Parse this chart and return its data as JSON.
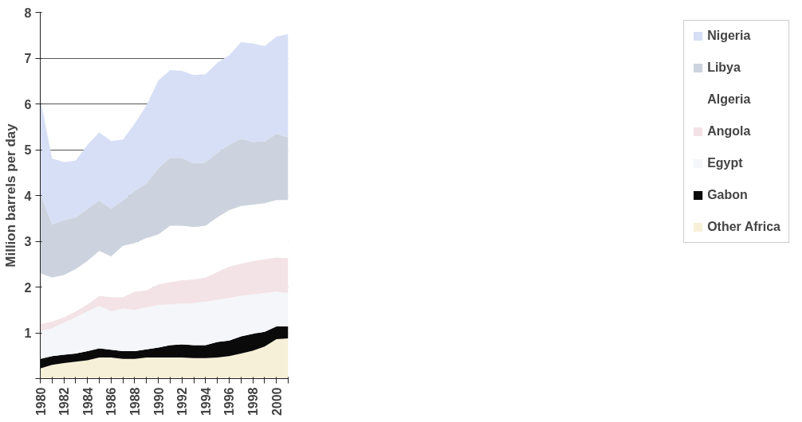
{
  "chart_data": {
    "type": "area",
    "stacked": true,
    "ylabel": "Million barrels per day",
    "x": [
      1980,
      1981,
      1982,
      1983,
      1984,
      1985,
      1986,
      1987,
      1988,
      1989,
      1990,
      1991,
      1992,
      1993,
      1994,
      1995,
      1996,
      1997,
      1998,
      1999,
      2000,
      2001
    ],
    "xlim": [
      1980,
      2001
    ],
    "xticks": [
      1980,
      {
        "value": 1981,
        "label": null
      },
      1982,
      {
        "value": 1983,
        "label": null
      },
      1984,
      {
        "value": 1985,
        "label": null
      },
      1986,
      {
        "value": 1987,
        "label": null
      },
      1988,
      {
        "value": 1989,
        "label": null
      },
      1990,
      {
        "value": 1991,
        "label": null
      },
      1992,
      {
        "value": 1993,
        "label": null
      },
      1994,
      {
        "value": 1995,
        "label": null
      },
      1996,
      {
        "value": 1997,
        "label": null
      },
      1998,
      {
        "value": 1999,
        "label": null
      },
      2000,
      {
        "value": 2001,
        "label": null
      }
    ],
    "ylim": [
      0,
      8
    ],
    "yticks": [
      {
        "value": 0,
        "label": null
      },
      1,
      2,
      3,
      4,
      5,
      6,
      7,
      8
    ],
    "grid": "y",
    "legend": "right",
    "series": [
      {
        "name": "Other Africa",
        "color": "#f7f0d8",
        "values": [
          0.22,
          0.3,
          0.34,
          0.37,
          0.4,
          0.46,
          0.46,
          0.43,
          0.43,
          0.46,
          0.46,
          0.46,
          0.46,
          0.45,
          0.45,
          0.46,
          0.49,
          0.55,
          0.61,
          0.7,
          0.86,
          0.88
        ]
      },
      {
        "name": "Gabon",
        "color": "#0a0a0a",
        "values": [
          0.21,
          0.19,
          0.18,
          0.18,
          0.2,
          0.2,
          0.17,
          0.17,
          0.17,
          0.18,
          0.22,
          0.27,
          0.29,
          0.28,
          0.28,
          0.34,
          0.34,
          0.37,
          0.37,
          0.32,
          0.28,
          0.26
        ]
      },
      {
        "name": "Egypt",
        "color": "#f4f6f9",
        "values": [
          0.61,
          0.61,
          0.7,
          0.79,
          0.87,
          0.93,
          0.84,
          0.93,
          0.9,
          0.92,
          0.93,
          0.89,
          0.89,
          0.92,
          0.95,
          0.92,
          0.93,
          0.89,
          0.86,
          0.85,
          0.76,
          0.73
        ]
      },
      {
        "name": "Angola",
        "color": "#f3e3e6",
        "values": [
          0.15,
          0.15,
          0.12,
          0.13,
          0.15,
          0.22,
          0.31,
          0.25,
          0.4,
          0.37,
          0.45,
          0.49,
          0.51,
          0.52,
          0.53,
          0.61,
          0.69,
          0.7,
          0.73,
          0.74,
          0.75,
          0.76
        ]
      },
      {
        "name": "Algeria",
        "color": "#ffffff",
        "values": [
          1.11,
          0.96,
          0.92,
          0.92,
          0.95,
          0.98,
          0.89,
          1.12,
          1.06,
          1.14,
          1.09,
          1.23,
          1.19,
          1.14,
          1.13,
          1.19,
          1.23,
          1.26,
          1.23,
          1.22,
          1.25,
          1.27
        ]
      },
      {
        "name": "Libya",
        "color": "#ccd3de",
        "values": [
          1.74,
          1.16,
          1.2,
          1.13,
          1.14,
          1.1,
          1.04,
          0.99,
          1.14,
          1.19,
          1.45,
          1.48,
          1.48,
          1.39,
          1.38,
          1.41,
          1.43,
          1.47,
          1.37,
          1.35,
          1.45,
          1.37
        ]
      },
      {
        "name": "Nigeria",
        "color": "#d6dff5",
        "values": [
          2.08,
          1.44,
          1.27,
          1.24,
          1.4,
          1.49,
          1.48,
          1.33,
          1.47,
          1.71,
          1.91,
          1.92,
          1.9,
          1.93,
          1.93,
          1.97,
          1.95,
          2.11,
          2.15,
          2.08,
          2.12,
          2.25
        ]
      }
    ]
  }
}
